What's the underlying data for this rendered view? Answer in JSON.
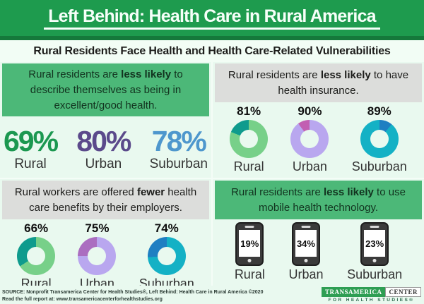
{
  "page": {
    "title": "Left Behind: Health Care in Rural America",
    "subtitle": "Rural Residents Face Health and Health Care-Related Vulnerabilities"
  },
  "colors": {
    "header_green": "#1e9b4e",
    "strip_green": "#15793b",
    "callout_green": "#4cb878",
    "callout_gray": "#dcdddb",
    "panel_background": "#e9f9ef"
  },
  "panels": {
    "health_status": {
      "heading": {
        "pre": "Rural residents are ",
        "bold": "less likely",
        "post": " to describe themselves as being in excellent/good health."
      },
      "stats": [
        {
          "label": "Rural",
          "display": "69%",
          "color": "#1b9850"
        },
        {
          "label": "Urban",
          "display": "80%",
          "color": "#5b4a8b"
        },
        {
          "label": "Suburban",
          "display": "78%",
          "color": "#4e97cd"
        }
      ]
    },
    "insurance": {
      "heading": {
        "pre": "Rural residents are ",
        "bold": "less likely",
        "post": " to have health insurance."
      },
      "donuts": [
        {
          "label": "Rural",
          "display": "81%",
          "value": 81,
          "main": "#77d089",
          "accent": "#0f9b8d",
          "accent_first": false
        },
        {
          "label": "Urban",
          "display": "90%",
          "value": 90,
          "main": "#b9a7ef",
          "accent": "#c25fb2",
          "accent_first": false
        },
        {
          "label": "Suburban",
          "display": "89%",
          "value": 89,
          "main": "#14b1c5",
          "accent": "#1f7fc2",
          "accent_first": true
        }
      ]
    },
    "benefits": {
      "heading": {
        "pre": "Rural workers are offered ",
        "bold": "fewer",
        "post": " health care benefits by their employers."
      },
      "donuts": [
        {
          "label": "Rural",
          "display": "66%",
          "value": 66,
          "main": "#77d089",
          "accent": "#0f9b8d",
          "accent_first": false
        },
        {
          "label": "Urban",
          "display": "75%",
          "value": 75,
          "main": "#b9a7ef",
          "accent": "#ab6ec0",
          "accent_first": false
        },
        {
          "label": "Suburban",
          "display": "74%",
          "value": 74,
          "main": "#14b1c5",
          "accent": "#1f7fc2",
          "accent_first": false
        }
      ]
    },
    "mobile": {
      "heading": {
        "pre": "Rural residents are ",
        "bold": "less likely",
        "post": " to use mobile health technology."
      },
      "phones": [
        {
          "label": "Rural",
          "display": "19%"
        },
        {
          "label": "Urban",
          "display": "34%"
        },
        {
          "label": "Suburban",
          "display": "23%"
        }
      ]
    }
  },
  "footer": {
    "source_line1": "SOURCE: Nonprofit Transamerica Center for Health Studies®, Left Behind: Health Care in Rural America ©2020",
    "source_line2": "Read the full report at: www.transamericacenterforhealthstudies.org",
    "logo": {
      "name_primary": "TRANSAMERICA",
      "name_secondary": "CENTER",
      "tagline": "FOR HEALTH STUDIES®"
    }
  },
  "chart_data": [
    {
      "type": "bar",
      "title": "Residents describing themselves as being in excellent/good health",
      "categories": [
        "Rural",
        "Urban",
        "Suburban"
      ],
      "values": [
        69,
        80,
        78
      ],
      "unit": "%"
    },
    {
      "type": "pie",
      "title": "Residents who have health insurance",
      "categories": [
        "Rural",
        "Urban",
        "Suburban"
      ],
      "values": [
        81,
        90,
        89
      ],
      "unit": "%"
    },
    {
      "type": "pie",
      "title": "Workers offered health care benefits by their employers",
      "categories": [
        "Rural",
        "Urban",
        "Suburban"
      ],
      "values": [
        66,
        75,
        74
      ],
      "unit": "%"
    },
    {
      "type": "pie",
      "title": "Residents using mobile health technology",
      "categories": [
        "Rural",
        "Urban",
        "Suburban"
      ],
      "values": [
        19,
        34,
        23
      ],
      "unit": "%"
    }
  ]
}
